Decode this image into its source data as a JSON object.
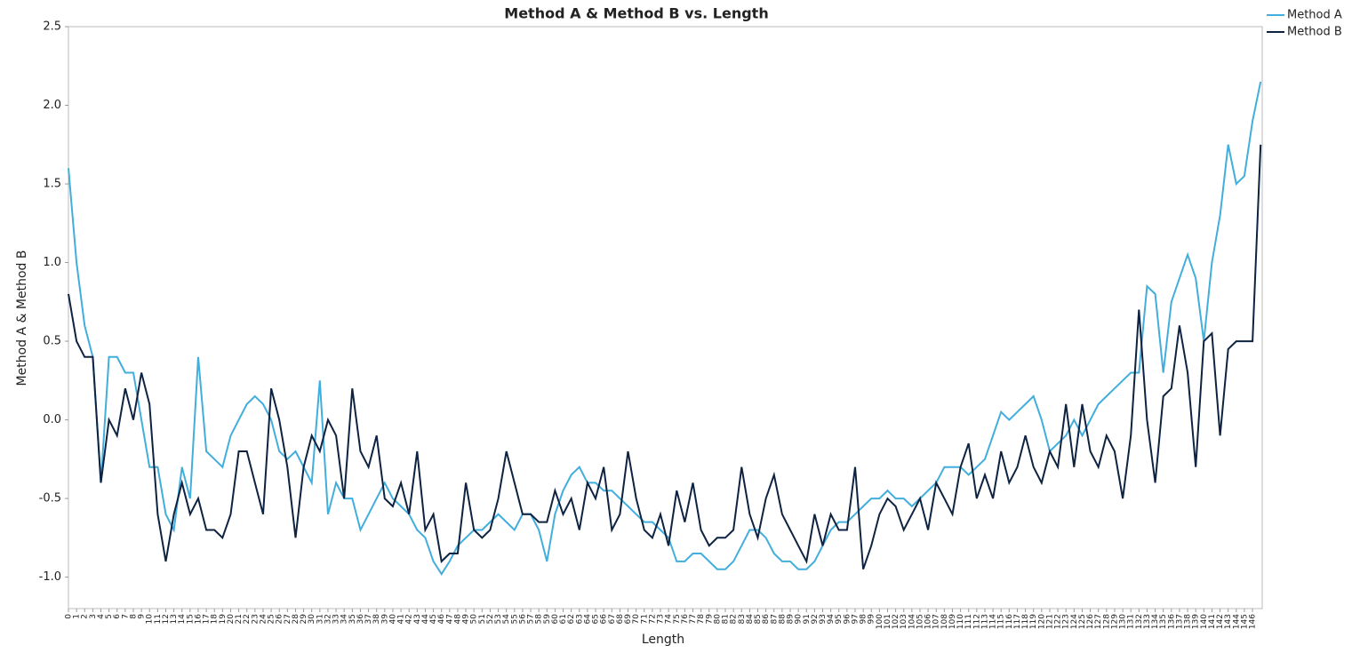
{
  "chart_data": {
    "type": "line",
    "title": "Method A & Method B vs. Length",
    "x_label": "Length",
    "y_label": "Method A & Method B",
    "x": [
      0,
      1,
      2,
      3,
      4,
      5,
      6,
      7,
      8,
      9,
      10,
      11,
      12,
      13,
      14,
      15,
      16,
      17,
      18,
      19,
      20,
      21,
      22,
      23,
      24,
      25,
      26,
      27,
      28,
      29,
      30,
      31,
      32,
      33,
      34,
      35,
      36,
      37,
      38,
      39,
      40,
      41,
      42,
      43,
      44,
      45,
      46,
      47,
      48,
      49,
      50,
      51,
      52,
      53,
      54,
      55,
      56,
      57,
      58,
      59,
      60,
      61,
      62,
      63,
      64,
      65,
      66,
      67,
      68,
      69,
      70,
      71,
      72,
      73,
      74,
      75,
      76,
      77,
      78,
      79,
      80,
      81,
      82,
      83,
      84,
      85,
      86,
      87,
      88,
      89,
      90,
      91,
      92,
      93,
      94,
      95,
      96,
      97,
      98,
      99,
      100,
      101,
      102,
      103,
      104,
      105,
      106,
      107,
      108,
      109,
      110,
      111,
      112,
      113,
      114,
      115,
      116,
      117,
      118,
      119,
      120,
      121,
      122,
      123,
      124,
      125,
      126,
      127,
      128,
      129,
      130,
      131,
      132,
      133,
      134,
      135,
      136,
      137,
      138,
      139,
      140,
      141,
      142,
      143,
      144,
      145,
      146,
      147
    ],
    "series": [
      {
        "name": "Method A",
        "color": "#41aedc",
        "values": [
          1.6,
          1.0,
          0.6,
          0.4,
          -0.4,
          0.4,
          0.4,
          0.3,
          0.3,
          0.0,
          -0.3,
          -0.3,
          -0.6,
          -0.7,
          -0.3,
          -0.5,
          0.4,
          -0.2,
          -0.25,
          -0.3,
          -0.1,
          0.0,
          0.1,
          0.15,
          0.1,
          0.0,
          -0.2,
          -0.25,
          -0.2,
          -0.3,
          -0.4,
          0.25,
          -0.6,
          -0.4,
          -0.5,
          -0.5,
          -0.7,
          -0.6,
          -0.5,
          -0.4,
          -0.5,
          -0.55,
          -0.6,
          -0.7,
          -0.75,
          -0.9,
          -0.98,
          -0.9,
          -0.8,
          -0.75,
          -0.7,
          -0.7,
          -0.65,
          -0.6,
          -0.65,
          -0.7,
          -0.6,
          -0.6,
          -0.7,
          -0.9,
          -0.6,
          -0.45,
          -0.35,
          -0.3,
          -0.4,
          -0.4,
          -0.45,
          -0.45,
          -0.5,
          -0.55,
          -0.6,
          -0.65,
          -0.65,
          -0.7,
          -0.75,
          -0.9,
          -0.9,
          -0.85,
          -0.85,
          -0.9,
          -0.95,
          -0.95,
          -0.9,
          -0.8,
          -0.7,
          -0.7,
          -0.75,
          -0.85,
          -0.9,
          -0.9,
          -0.95,
          -0.95,
          -0.9,
          -0.8,
          -0.7,
          -0.65,
          -0.65,
          -0.6,
          -0.55,
          -0.5,
          -0.5,
          -0.45,
          -0.5,
          -0.5,
          -0.55,
          -0.5,
          -0.45,
          -0.4,
          -0.3,
          -0.3,
          -0.3,
          -0.35,
          -0.3,
          -0.25,
          -0.1,
          0.05,
          0.0,
          0.05,
          0.1,
          0.15,
          0.0,
          -0.2,
          -0.15,
          -0.1,
          0.0,
          -0.1,
          0.0,
          0.1,
          0.15,
          0.2,
          0.25,
          0.3,
          0.3,
          0.85,
          0.8,
          0.3,
          0.75,
          0.9,
          1.05,
          0.9,
          0.5,
          1.0,
          1.3,
          1.75,
          1.5,
          1.55,
          1.9,
          2.15
        ]
      },
      {
        "name": "Method B",
        "color": "#0e2241",
        "values": [
          0.8,
          0.5,
          0.4,
          0.4,
          -0.4,
          0.0,
          -0.1,
          0.2,
          0.0,
          0.3,
          0.1,
          -0.6,
          -0.9,
          -0.6,
          -0.4,
          -0.6,
          -0.5,
          -0.7,
          -0.7,
          -0.75,
          -0.6,
          -0.2,
          -0.2,
          -0.4,
          -0.6,
          0.2,
          0.0,
          -0.3,
          -0.75,
          -0.3,
          -0.1,
          -0.2,
          0.0,
          -0.1,
          -0.5,
          0.2,
          -0.2,
          -0.3,
          -0.1,
          -0.5,
          -0.55,
          -0.4,
          -0.6,
          -0.2,
          -0.7,
          -0.6,
          -0.9,
          -0.85,
          -0.85,
          -0.4,
          -0.7,
          -0.75,
          -0.7,
          -0.5,
          -0.2,
          -0.4,
          -0.6,
          -0.6,
          -0.65,
          -0.65,
          -0.45,
          -0.6,
          -0.5,
          -0.7,
          -0.4,
          -0.5,
          -0.3,
          -0.7,
          -0.6,
          -0.2,
          -0.5,
          -0.7,
          -0.75,
          -0.6,
          -0.8,
          -0.45,
          -0.65,
          -0.4,
          -0.7,
          -0.8,
          -0.75,
          -0.75,
          -0.7,
          -0.3,
          -0.6,
          -0.75,
          -0.5,
          -0.35,
          -0.6,
          -0.7,
          -0.8,
          -0.9,
          -0.6,
          -0.8,
          -0.6,
          -0.7,
          -0.7,
          -0.3,
          -0.95,
          -0.8,
          -0.6,
          -0.5,
          -0.55,
          -0.7,
          -0.6,
          -0.5,
          -0.7,
          -0.4,
          -0.5,
          -0.6,
          -0.3,
          -0.15,
          -0.5,
          -0.35,
          -0.5,
          -0.2,
          -0.4,
          -0.3,
          -0.1,
          -0.3,
          -0.4,
          -0.2,
          -0.3,
          0.1,
          -0.3,
          0.1,
          -0.2,
          -0.3,
          -0.1,
          -0.2,
          -0.5,
          -0.1,
          0.7,
          0.0,
          -0.4,
          0.15,
          0.2,
          0.6,
          0.3,
          -0.3,
          0.5,
          0.55,
          -0.1,
          0.45,
          0.5,
          0.5,
          0.5,
          1.75
        ]
      }
    ],
    "xlim": [
      0,
      147.2
    ],
    "ylim": [
      -1.2,
      2.5
    ],
    "xticks": [
      0,
      1,
      2,
      3,
      4,
      5,
      6,
      7,
      8,
      9,
      10,
      11,
      12,
      13,
      14,
      15,
      16,
      17,
      18,
      19,
      20,
      21,
      22,
      23,
      24,
      25,
      26,
      27,
      28,
      29,
      30,
      31,
      32,
      33,
      34,
      35,
      36,
      37,
      38,
      39,
      40,
      41,
      42,
      43,
      44,
      45,
      46,
      47,
      48,
      49,
      50,
      51,
      52,
      53,
      54,
      55,
      56,
      57,
      58,
      59,
      60,
      61,
      62,
      63,
      64,
      65,
      66,
      67,
      68,
      69,
      70,
      71,
      72,
      73,
      74,
      75,
      76,
      77,
      78,
      79,
      80,
      81,
      82,
      83,
      84,
      85,
      86,
      87,
      88,
      89,
      90,
      91,
      92,
      93,
      94,
      95,
      96,
      97,
      98,
      99,
      100,
      101,
      102,
      103,
      104,
      105,
      106,
      107,
      108,
      109,
      110,
      111,
      112,
      113,
      114,
      115,
      116,
      117,
      118,
      119,
      120,
      121,
      122,
      123,
      124,
      125,
      126,
      127,
      128,
      129,
      130,
      131,
      132,
      133,
      134,
      135,
      136,
      137,
      138,
      139,
      140,
      141,
      142,
      143,
      144,
      145,
      146
    ],
    "yticks": [
      {
        "value": -1,
        "label": "-1.0"
      },
      -0.5,
      {
        "value": 0,
        "label": "0.0"
      },
      0.5,
      {
        "value": 1,
        "label": "1.0"
      },
      1.5,
      {
        "value": 2,
        "label": "2.0"
      },
      2.5
    ],
    "grid": false,
    "legend": "top-right"
  }
}
